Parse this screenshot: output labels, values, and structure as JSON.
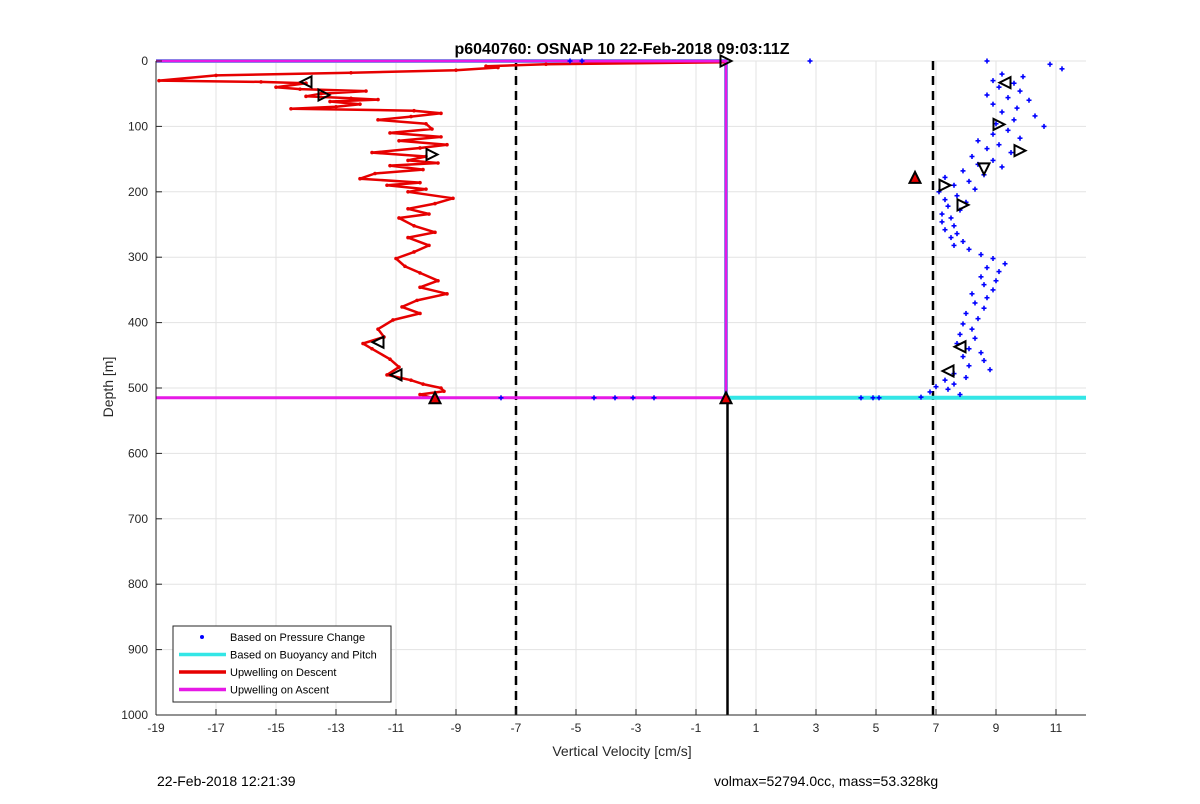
{
  "chart_data": {
    "type": "scatter",
    "title": "p6040760: OSNAP 10 22-Feb-2018 09:03:11Z",
    "xlabel": "Vertical Velocity [cm/s]",
    "ylabel": "Depth [m]",
    "xlim": [
      -19,
      12
    ],
    "ylim": [
      0,
      1000
    ],
    "y_reversed": true,
    "x_ticks": [
      -19,
      -17,
      -15,
      -13,
      -11,
      -9,
      -7,
      -5,
      -3,
      -1,
      1,
      3,
      5,
      7,
      9,
      11
    ],
    "y_ticks": [
      0,
      100,
      200,
      300,
      400,
      500,
      600,
      700,
      800,
      900,
      1000
    ],
    "grid": true,
    "legend_position": "bottom-left",
    "legend": [
      {
        "label": "Based on Pressure Change",
        "style": "dot",
        "color": "#0000ff"
      },
      {
        "label": "Based on Buoyancy and Pitch",
        "style": "line",
        "color": "#33e6e6"
      },
      {
        "label": "Upwelling on Descent",
        "style": "line",
        "color": "#e60000"
      },
      {
        "label": "Upwelling on Ascent",
        "style": "line",
        "color": "#e619e6"
      }
    ],
    "reference_lines": {
      "dashed_vertical_x": [
        -7,
        6.9
      ],
      "solid_vertical": {
        "x": 0.05,
        "y_range": [
          515,
          1000
        ]
      }
    },
    "series": [
      {
        "name": "Based on Buoyancy and Pitch",
        "color": "#33e6e6",
        "points": [
          [
            -19,
            0
          ],
          [
            0,
            0
          ],
          [
            0,
            515
          ],
          [
            12,
            515
          ]
        ]
      },
      {
        "name": "Upwelling on Descent",
        "color": "#e60000",
        "points": [
          [
            0,
            2
          ],
          [
            -6,
            5
          ],
          [
            -8,
            8
          ],
          [
            -7.6,
            10
          ],
          [
            -9,
            14
          ],
          [
            -12.5,
            18
          ],
          [
            -17,
            22
          ],
          [
            -18.9,
            30
          ],
          [
            -15.5,
            32
          ],
          [
            -14,
            34
          ],
          [
            -15,
            40
          ],
          [
            -14.2,
            43
          ],
          [
            -12,
            46
          ],
          [
            -13.5,
            50
          ],
          [
            -14,
            54
          ],
          [
            -12.5,
            57
          ],
          [
            -11.6,
            59
          ],
          [
            -13.2,
            62
          ],
          [
            -12.2,
            66
          ],
          [
            -13,
            70
          ],
          [
            -14.5,
            73
          ],
          [
            -10.4,
            76
          ],
          [
            -9.5,
            80
          ],
          [
            -10.5,
            85
          ],
          [
            -11.6,
            90
          ],
          [
            -10,
            96
          ],
          [
            -9.8,
            104
          ],
          [
            -11.2,
            110
          ],
          [
            -9.5,
            116
          ],
          [
            -10.9,
            122
          ],
          [
            -9.3,
            128
          ],
          [
            -10.2,
            133
          ],
          [
            -11.8,
            140
          ],
          [
            -10,
            146
          ],
          [
            -10.6,
            152
          ],
          [
            -9.6,
            156
          ],
          [
            -11.2,
            160
          ],
          [
            -10.1,
            166
          ],
          [
            -11.7,
            172
          ],
          [
            -12.2,
            180
          ],
          [
            -10.2,
            186
          ],
          [
            -11.3,
            190
          ],
          [
            -10,
            196
          ],
          [
            -10.6,
            200
          ],
          [
            -9.1,
            210
          ],
          [
            -9.7,
            218
          ],
          [
            -10.6,
            226
          ],
          [
            -9.9,
            234
          ],
          [
            -10.9,
            240
          ],
          [
            -10.4,
            252
          ],
          [
            -9.7,
            262
          ],
          [
            -10.6,
            270
          ],
          [
            -9.9,
            282
          ],
          [
            -10.4,
            292
          ],
          [
            -11,
            302
          ],
          [
            -10.7,
            314
          ],
          [
            -10.2,
            324
          ],
          [
            -9.6,
            336
          ],
          [
            -10.2,
            346
          ],
          [
            -9.3,
            356
          ],
          [
            -10.3,
            366
          ],
          [
            -10.8,
            376
          ],
          [
            -10.2,
            386
          ],
          [
            -11.1,
            396
          ],
          [
            -11.6,
            410
          ],
          [
            -11.4,
            422
          ],
          [
            -12.1,
            432
          ],
          [
            -11.8,
            440
          ],
          [
            -11.2,
            456
          ],
          [
            -10.9,
            468
          ],
          [
            -11.3,
            480
          ],
          [
            -10.5,
            488
          ],
          [
            -10.1,
            494
          ],
          [
            -9.5,
            500
          ],
          [
            -9.4,
            505
          ],
          [
            -10.2,
            510
          ],
          [
            -9.8,
            515
          ],
          [
            0,
            515
          ]
        ]
      },
      {
        "name": "Upwelling on Ascent",
        "color": "#e619e6",
        "points": [
          [
            -19,
            0
          ],
          [
            0,
            0
          ],
          [
            0,
            515
          ],
          [
            -19,
            515
          ]
        ]
      },
      {
        "name": "Based on Pressure Change",
        "color": "#0000ff",
        "points": [
          [
            -5.2,
            0
          ],
          [
            -4.8,
            0
          ],
          [
            2.8,
            0
          ],
          [
            -4.4,
            515
          ],
          [
            -3.7,
            515
          ],
          [
            -3.1,
            515
          ],
          [
            -2.4,
            515
          ],
          [
            -7.5,
            515
          ],
          [
            4.5,
            515
          ],
          [
            4.9,
            515
          ],
          [
            5.1,
            515
          ],
          [
            8.7,
            0
          ],
          [
            10.8,
            5
          ],
          [
            11.2,
            12
          ],
          [
            9.2,
            20
          ],
          [
            9.9,
            24
          ],
          [
            8.9,
            30
          ],
          [
            9.6,
            34
          ],
          [
            9.1,
            40
          ],
          [
            9.8,
            46
          ],
          [
            8.7,
            52
          ],
          [
            9.4,
            56
          ],
          [
            10.1,
            60
          ],
          [
            8.9,
            66
          ],
          [
            9.7,
            72
          ],
          [
            9.2,
            78
          ],
          [
            10.3,
            84
          ],
          [
            9.6,
            90
          ],
          [
            9.0,
            96
          ],
          [
            10.6,
            100
          ],
          [
            9.4,
            106
          ],
          [
            8.9,
            112
          ],
          [
            9.8,
            118
          ],
          [
            8.4,
            122
          ],
          [
            9.1,
            128
          ],
          [
            8.7,
            134
          ],
          [
            9.5,
            140
          ],
          [
            8.2,
            146
          ],
          [
            8.9,
            152
          ],
          [
            8.4,
            158
          ],
          [
            9.2,
            162
          ],
          [
            7.9,
            168
          ],
          [
            8.6,
            174
          ],
          [
            7.3,
            178
          ],
          [
            8.1,
            184
          ],
          [
            7.6,
            190
          ],
          [
            8.3,
            196
          ],
          [
            7.1,
            200
          ],
          [
            7.7,
            206
          ],
          [
            7.3,
            212
          ],
          [
            8.0,
            216
          ],
          [
            7.4,
            222
          ],
          [
            7.8,
            228
          ],
          [
            7.2,
            234
          ],
          [
            7.5,
            240
          ],
          [
            7.2,
            246
          ],
          [
            7.6,
            252
          ],
          [
            7.3,
            258
          ],
          [
            7.7,
            264
          ],
          [
            7.5,
            270
          ],
          [
            7.9,
            276
          ],
          [
            7.6,
            282
          ],
          [
            8.1,
            288
          ],
          [
            8.5,
            296
          ],
          [
            8.9,
            302
          ],
          [
            9.3,
            310
          ],
          [
            8.7,
            316
          ],
          [
            9.1,
            322
          ],
          [
            8.5,
            330
          ],
          [
            9.0,
            336
          ],
          [
            8.6,
            342
          ],
          [
            8.9,
            350
          ],
          [
            8.2,
            356
          ],
          [
            8.7,
            362
          ],
          [
            8.3,
            370
          ],
          [
            8.6,
            378
          ],
          [
            8.0,
            386
          ],
          [
            8.4,
            394
          ],
          [
            7.9,
            402
          ],
          [
            8.2,
            410
          ],
          [
            7.8,
            418
          ],
          [
            8.3,
            424
          ],
          [
            7.7,
            432
          ],
          [
            8.1,
            440
          ],
          [
            8.5,
            446
          ],
          [
            7.9,
            452
          ],
          [
            8.6,
            458
          ],
          [
            8.1,
            466
          ],
          [
            8.8,
            472
          ],
          [
            7.6,
            478
          ],
          [
            8.0,
            484
          ],
          [
            7.3,
            488
          ],
          [
            7.6,
            494
          ],
          [
            7.0,
            498
          ],
          [
            7.4,
            502
          ],
          [
            6.8,
            506
          ],
          [
            7.8,
            510
          ],
          [
            6.5,
            514
          ]
        ]
      }
    ],
    "markers": [
      {
        "x": 0,
        "y": 0,
        "shape": "right",
        "fill": "none"
      },
      {
        "x": -14.0,
        "y": 32,
        "shape": "left",
        "fill": "none"
      },
      {
        "x": -13.4,
        "y": 52,
        "shape": "right",
        "fill": "none"
      },
      {
        "x": -9.8,
        "y": 143,
        "shape": "right",
        "fill": "none"
      },
      {
        "x": -11.6,
        "y": 430,
        "shape": "left",
        "fill": "none"
      },
      {
        "x": -11.0,
        "y": 480,
        "shape": "left",
        "fill": "none"
      },
      {
        "x": -9.7,
        "y": 515,
        "shape": "up",
        "fill": "#e60000"
      },
      {
        "x": 0,
        "y": 515,
        "shape": "up",
        "fill": "#e60000"
      },
      {
        "x": 9.3,
        "y": 33,
        "shape": "left",
        "fill": "none"
      },
      {
        "x": 9.1,
        "y": 97,
        "shape": "right",
        "fill": "none"
      },
      {
        "x": 9.8,
        "y": 137,
        "shape": "right",
        "fill": "none"
      },
      {
        "x": 8.6,
        "y": 165,
        "shape": "down",
        "fill": "none"
      },
      {
        "x": 6.3,
        "y": 178,
        "shape": "up",
        "fill": "#e60000"
      },
      {
        "x": 7.3,
        "y": 190,
        "shape": "right",
        "fill": "none"
      },
      {
        "x": 7.9,
        "y": 220,
        "shape": "right",
        "fill": "none"
      },
      {
        "x": 7.8,
        "y": 437,
        "shape": "left",
        "fill": "none"
      },
      {
        "x": 7.4,
        "y": 474,
        "shape": "left",
        "fill": "none"
      }
    ]
  },
  "footer": {
    "left_text": "22-Feb-2018 12:21:39",
    "right_text": "volmax=52794.0cc, mass=53.328kg"
  }
}
